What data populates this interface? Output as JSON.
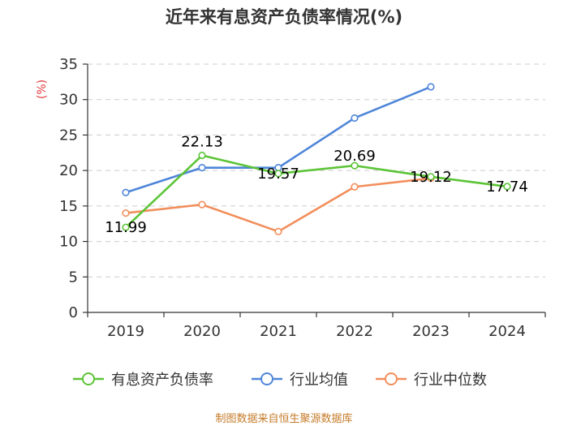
{
  "chart_data": {
    "type": "line",
    "title": "近年来有息资产负债率情况(%)",
    "ylabel": "(%)",
    "xlabel": "",
    "categories": [
      "2019",
      "2020",
      "2021",
      "2022",
      "2023",
      "2024"
    ],
    "ylim": [
      0,
      35
    ],
    "yticks": [
      0,
      5,
      10,
      15,
      20,
      25,
      30,
      35
    ],
    "grid": true,
    "legend_position": "bottom",
    "series": [
      {
        "name": "有息资产负债率",
        "color": "#5cc437",
        "values": [
          11.99,
          22.13,
          19.57,
          20.69,
          19.12,
          17.74
        ],
        "labels": [
          "11.99",
          "22.13",
          "19.57",
          "20.69",
          "19.12",
          "17.74"
        ]
      },
      {
        "name": "行业均值",
        "color": "#4f86d9",
        "values": [
          16.9,
          20.4,
          20.4,
          27.4,
          31.8,
          null
        ]
      },
      {
        "name": "行业中位数",
        "color": "#f28e5b",
        "values": [
          14.0,
          15.2,
          11.4,
          17.7,
          18.9,
          null
        ]
      }
    ],
    "source": "制图数据来自恒生聚源数据库"
  }
}
